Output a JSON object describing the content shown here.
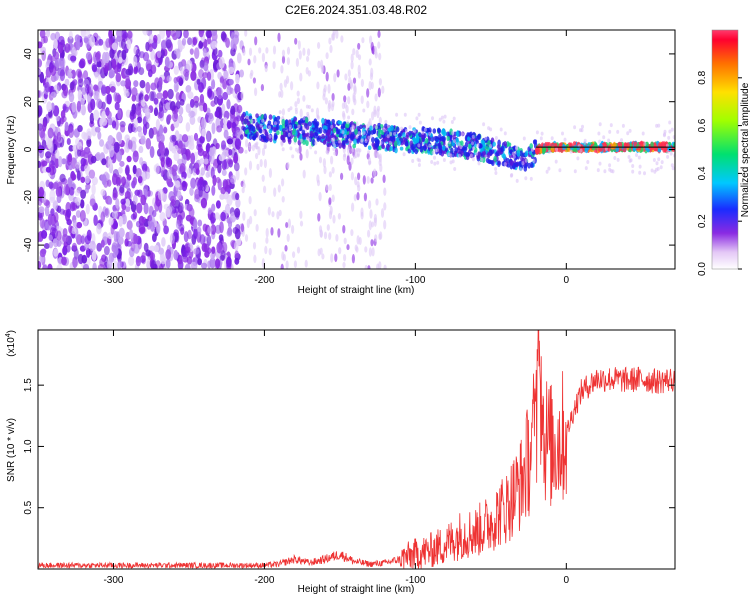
{
  "title": "C2E6.2024.351.03.48.R02",
  "chart_data": [
    {
      "type": "heatmap",
      "xlabel": "Height of straight line (km)",
      "ylabel": "Frequency (Hz)",
      "xlim": [
        -350,
        72
      ],
      "ylim": [
        -50,
        50
      ],
      "xticks": [
        -300,
        -200,
        -100,
        0
      ],
      "yticks": [
        -40,
        -20,
        0,
        20,
        40
      ],
      "colorbar": {
        "label": "Normalized spectral amplitude",
        "range": [
          0,
          1
        ],
        "ticks": [
          "0.0",
          "0.2",
          "0.4",
          "0.6",
          "0.8"
        ],
        "tick_values": [
          0,
          0.2,
          0.4,
          0.6,
          0.8
        ]
      },
      "ridge": {
        "x": [
          -215,
          -200,
          -180,
          -160,
          -140,
          -120,
          -100,
          -80,
          -60,
          -40,
          -25,
          -20,
          -10,
          0,
          10,
          30,
          50,
          72
        ],
        "y": [
          10,
          9,
          8,
          7,
          6,
          5,
          4,
          3,
          1,
          -2,
          -4,
          0,
          1,
          1,
          1,
          1,
          1,
          1
        ]
      }
    },
    {
      "type": "line",
      "xlabel": "Height of straight line (km)",
      "ylabel": "SNR (10 * v/v)",
      "y_multiplier": "(x10",
      "y_multiplier_exp": "4",
      "xlim": [
        -350,
        72
      ],
      "ylim": [
        0,
        1.95
      ],
      "xticks": [
        -300,
        -200,
        -100,
        0
      ],
      "yticks": [
        0.5,
        1.0,
        1.5
      ],
      "ytick_labels": [
        "0.5",
        "1.0",
        "1.5"
      ],
      "color": "#ee3333",
      "series": [
        {
          "x": [
            -350,
            -300,
            -250,
            -200,
            -190,
            -180,
            -170,
            -160,
            -150,
            -140,
            -130,
            -120,
            -110,
            -100,
            -90,
            -80,
            -70,
            -60,
            -50,
            -45,
            -40,
            -35,
            -30,
            -25,
            -20,
            -18,
            -15,
            -10,
            -5,
            0,
            5,
            10,
            20,
            30,
            40,
            50,
            60,
            72
          ],
          "y": [
            0.03,
            0.03,
            0.03,
            0.03,
            0.04,
            0.08,
            0.05,
            0.08,
            0.12,
            0.06,
            0.04,
            0.05,
            0.08,
            0.12,
            0.15,
            0.2,
            0.28,
            0.3,
            0.38,
            0.45,
            0.5,
            0.6,
            0.7,
            0.9,
            1.1,
            1.7,
            1.1,
            1.0,
            1.05,
            1.1,
            1.3,
            1.45,
            1.55,
            1.55,
            1.54,
            1.55,
            1.53,
            1.55
          ]
        }
      ]
    }
  ]
}
